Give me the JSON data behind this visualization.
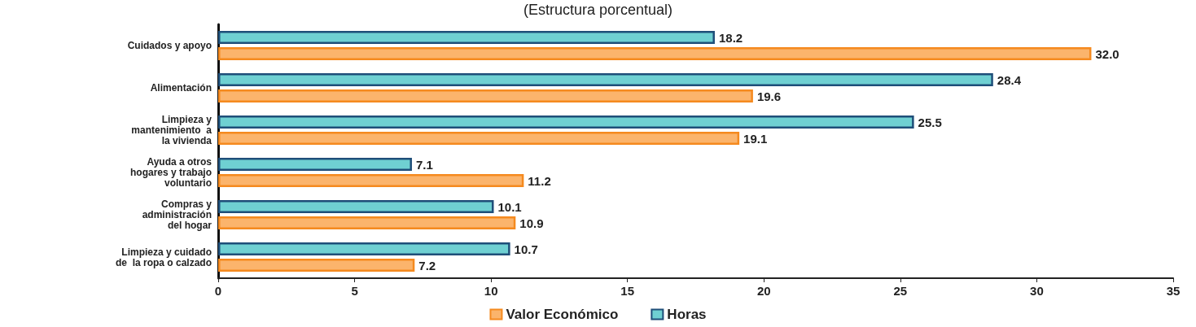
{
  "chart_data": {
    "type": "bar",
    "orientation": "horizontal",
    "title": "(Estructura porcentual)",
    "categories": [
      "Cuidados y apoyo",
      "Alimentación",
      "Limpieza y\nmantenimiento  a\nla vivienda",
      "Ayuda a otros\nhogares y trabajo\nvoluntario",
      "Compras y\nadministración\ndel hogar",
      "Limpieza y cuidado\nde  la ropa o calzado"
    ],
    "series": [
      {
        "name": "Horas",
        "color": "#6fd0d2",
        "values": [
          18.2,
          28.4,
          25.5,
          7.1,
          10.1,
          10.7
        ],
        "value_labels": [
          "18.2",
          "28.4",
          "25.5",
          "7.1",
          "10.1",
          "10.7"
        ]
      },
      {
        "name": "Valor Económico",
        "color": "#fbb46c",
        "values": [
          32.0,
          19.6,
          19.1,
          11.2,
          10.9,
          7.2
        ],
        "value_labels": [
          "32.0",
          "19.6",
          "19.1",
          "11.2",
          "10.9",
          "7.2"
        ]
      }
    ],
    "xlim": [
      0,
      35
    ],
    "xticks": [
      0,
      5,
      10,
      15,
      20,
      25,
      30,
      35
    ],
    "grid": false,
    "legend": "bottom"
  }
}
